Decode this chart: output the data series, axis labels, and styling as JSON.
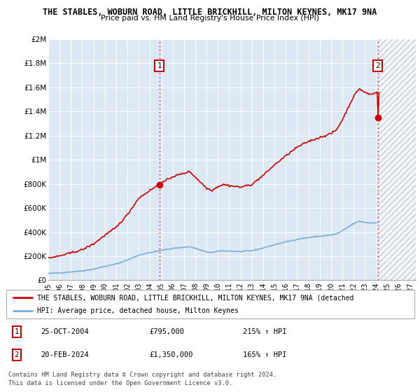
{
  "title": "THE STABLES, WOBURN ROAD, LITTLE BRICKHILL, MILTON KEYNES, MK17 9NA",
  "subtitle": "Price paid vs. HM Land Registry's House Price Index (HPI)",
  "ylim": [
    0,
    2000000
  ],
  "yticks": [
    0,
    200000,
    400000,
    600000,
    800000,
    1000000,
    1200000,
    1400000,
    1600000,
    1800000,
    2000000
  ],
  "ytick_labels": [
    "£0",
    "£200K",
    "£400K",
    "£600K",
    "£800K",
    "£1M",
    "£1.2M",
    "£1.4M",
    "£1.6M",
    "£1.8M",
    "£2M"
  ],
  "xlim_start": 1995.0,
  "xlim_end": 2027.5,
  "xticks": [
    1995,
    1996,
    1997,
    1998,
    1999,
    2000,
    2001,
    2002,
    2003,
    2004,
    2005,
    2006,
    2007,
    2008,
    2009,
    2010,
    2011,
    2012,
    2013,
    2014,
    2015,
    2016,
    2017,
    2018,
    2019,
    2020,
    2021,
    2022,
    2023,
    2024,
    2025,
    2026,
    2027
  ],
  "property_color": "#cc0000",
  "hpi_color": "#7aadd4",
  "vline_color": "#cc0000",
  "transaction1_x": 2004.82,
  "transaction1_y": 795000,
  "transaction2_x": 2024.13,
  "transaction2_y": 1350000,
  "legend_property_label": "THE STABLES, WOBURN ROAD, LITTLE BRICKHILL, MILTON KEYNES, MK17 9NA (detached",
  "legend_hpi_label": "HPI: Average price, detached house, Milton Keynes",
  "table_rows": [
    {
      "num": "1",
      "date": "25-OCT-2004",
      "price": "£795,000",
      "change": "215% ↑ HPI"
    },
    {
      "num": "2",
      "date": "20-FEB-2024",
      "price": "£1,350,000",
      "change": "165% ↑ HPI"
    }
  ],
  "footnote": "Contains HM Land Registry data © Crown copyright and database right 2024.\nThis data is licensed under the Open Government Licence v3.0.",
  "background_color": "#ffffff",
  "plot_bg_color": "#dce9f5",
  "grid_color": "#ffffff",
  "hatch_region_start": 2024.13,
  "hatch_region_end": 2027.5
}
